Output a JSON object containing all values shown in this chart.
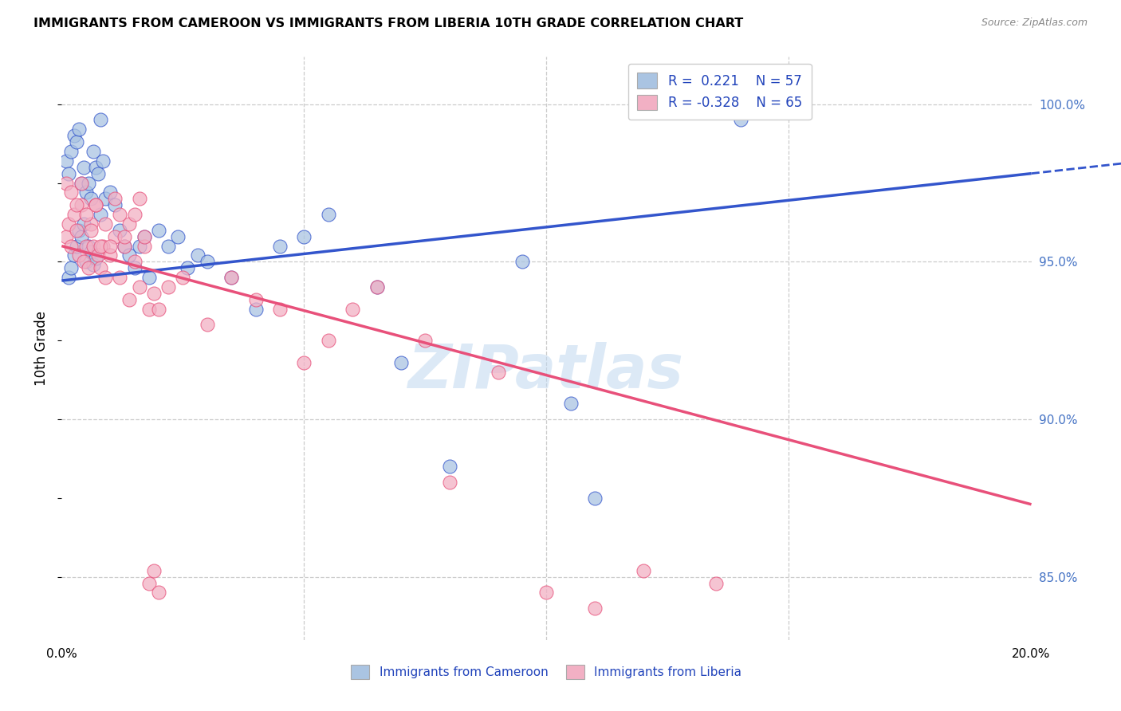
{
  "title": "IMMIGRANTS FROM CAMEROON VS IMMIGRANTS FROM LIBERIA 10TH GRADE CORRELATION CHART",
  "source": "Source: ZipAtlas.com",
  "ylabel": "10th Grade",
  "xlim": [
    0.0,
    20.0
  ],
  "ylim": [
    83.0,
    101.5
  ],
  "r_cameroon": 0.221,
  "n_cameroon": 57,
  "r_liberia": -0.328,
  "n_liberia": 65,
  "legend_label_cameroon": "Immigrants from Cameroon",
  "legend_label_liberia": "Immigrants from Liberia",
  "color_cameroon": "#aac4e2",
  "color_liberia": "#f2b0c4",
  "trend_color_cameroon": "#3355cc",
  "trend_color_liberia": "#e8507a",
  "watermark": "ZIPatlas",
  "background_color": "#ffffff",
  "blue_line_x0": 0.0,
  "blue_line_y0": 94.4,
  "blue_line_x1": 20.0,
  "blue_line_y1": 97.8,
  "pink_line_x0": 0.0,
  "pink_line_y0": 95.5,
  "pink_line_x1": 20.0,
  "pink_line_y1": 87.3,
  "cameroon_x": [
    0.15,
    0.2,
    0.25,
    0.3,
    0.35,
    0.4,
    0.45,
    0.5,
    0.55,
    0.6,
    0.65,
    0.7,
    0.8,
    0.9,
    1.0,
    1.1,
    1.2,
    1.3,
    1.4,
    1.5,
    1.6,
    1.7,
    1.8,
    2.0,
    2.2,
    2.4,
    2.6,
    2.8,
    3.0,
    3.5,
    4.0,
    4.5,
    5.0,
    5.5,
    6.5,
    7.0,
    8.0,
    9.5,
    10.5,
    11.0,
    14.0
  ],
  "cameroon_y": [
    94.5,
    94.8,
    95.2,
    95.5,
    96.0,
    95.8,
    96.2,
    95.0,
    95.5,
    95.3,
    94.9,
    95.1,
    96.5,
    97.0,
    97.2,
    96.8,
    96.0,
    95.5,
    95.2,
    94.8,
    95.5,
    95.8,
    94.5,
    96.0,
    95.5,
    95.8,
    94.8,
    95.2,
    95.0,
    94.5,
    93.5,
    95.5,
    95.8,
    96.5,
    94.2,
    91.8,
    88.5,
    95.0,
    90.5,
    87.5,
    99.5
  ],
  "cameroon_extra_x": [
    0.1,
    0.15,
    0.2,
    0.25,
    0.3,
    0.35,
    0.4,
    0.45,
    0.5,
    0.55,
    0.6,
    0.65,
    0.7,
    0.75,
    0.8,
    0.85
  ],
  "cameroon_extra_y": [
    98.2,
    97.8,
    98.5,
    99.0,
    98.8,
    99.2,
    97.5,
    98.0,
    97.2,
    97.5,
    97.0,
    98.5,
    98.0,
    97.8,
    99.5,
    98.2
  ],
  "liberia_x": [
    0.1,
    0.15,
    0.2,
    0.25,
    0.3,
    0.35,
    0.4,
    0.45,
    0.5,
    0.55,
    0.6,
    0.65,
    0.7,
    0.75,
    0.8,
    0.85,
    0.9,
    1.0,
    1.1,
    1.2,
    1.3,
    1.4,
    1.5,
    1.6,
    1.7,
    1.8,
    1.9,
    2.0,
    2.2,
    2.5,
    3.0,
    3.5,
    4.0,
    4.5,
    5.0,
    5.5,
    6.0,
    6.5,
    7.5,
    8.0,
    9.0,
    10.0,
    11.0,
    12.0,
    13.5
  ],
  "liberia_y": [
    95.8,
    96.2,
    95.5,
    96.5,
    96.0,
    95.2,
    96.8,
    95.0,
    95.5,
    94.8,
    96.2,
    95.5,
    96.8,
    95.2,
    94.8,
    95.5,
    94.5,
    95.2,
    95.8,
    94.5,
    95.5,
    93.8,
    95.0,
    94.2,
    95.5,
    93.5,
    94.0,
    93.5,
    94.2,
    94.5,
    93.0,
    94.5,
    93.8,
    93.5,
    91.8,
    92.5,
    93.5,
    94.2,
    92.5,
    88.0,
    91.5,
    84.5,
    84.0,
    85.2,
    84.8
  ],
  "liberia_extra_x": [
    0.1,
    0.2,
    0.3,
    0.4,
    0.5,
    0.6,
    0.7,
    0.8,
    0.9,
    1.0,
    1.1,
    1.2,
    1.3,
    1.4,
    1.5,
    1.6,
    1.7,
    1.8,
    1.9,
    2.0
  ],
  "liberia_extra_y": [
    97.5,
    97.2,
    96.8,
    97.5,
    96.5,
    96.0,
    96.8,
    95.5,
    96.2,
    95.5,
    97.0,
    96.5,
    95.8,
    96.2,
    96.5,
    97.0,
    95.8,
    84.8,
    85.2,
    84.5
  ]
}
